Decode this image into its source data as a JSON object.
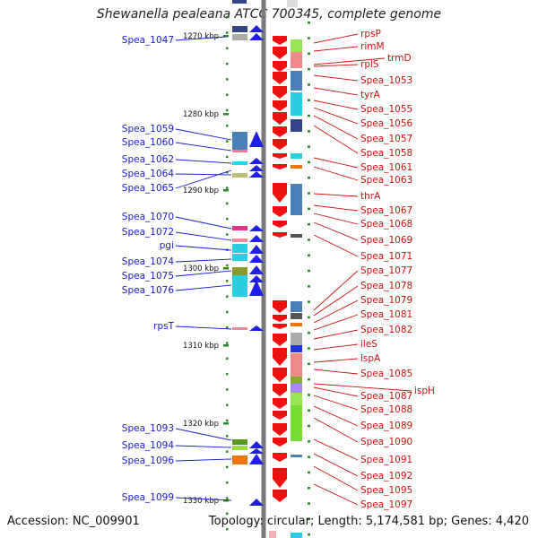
{
  "title": "Shewanella pealeana ATCC 700345, complete genome",
  "footer": {
    "accession": "Accession: NC_009901",
    "info": "Topology: circular; Length: 5,174,581 bp; Genes: 4,420"
  },
  "ticks": [
    "1270 kbp",
    "1280 kbp",
    "1290 kbp",
    "1300 kbp",
    "1310 kbp",
    "1320 kbp",
    "1330 kbp"
  ],
  "left_labels": [
    "Spea_1047",
    "Spea_1059",
    "Spea_1060",
    "Spea_1062",
    "Spea_1064",
    "Spea_1065",
    "Spea_1070",
    "Spea_1072",
    "pgi",
    "Spea_1074",
    "Spea_1075",
    "Spea_1076",
    "rpsT",
    "Spea_1093",
    "Spea_1094",
    "Spea_1096",
    "Spea_1099"
  ],
  "right_labels": [
    "rpsP",
    "rimM",
    "trmD",
    "rplS",
    "Spea_1053",
    "tyrA",
    "Spea_1055",
    "Spea_1056",
    "Spea_1057",
    "Spea_1058",
    "Spea_1061",
    "Spea_1063",
    "thrA",
    "Spea_1067",
    "Spea_1068",
    "Spea_1069",
    "Spea_1071",
    "Spea_1077",
    "Spea_1078",
    "Spea_1079",
    "Spea_1081",
    "Spea_1082",
    "ileS",
    "lspA",
    "Spea_1085",
    "ispH",
    "Spea_1087",
    "Spea_1088",
    "Spea_1089",
    "Spea_1090",
    "Spea_1091",
    "Spea_1092",
    "Spea_1095",
    "Spea_1097"
  ],
  "colors": {
    "left_label": "#1a1acc",
    "right_label": "#cc1111",
    "forward_arrow": "#1f1fe6",
    "reverse_arrow": "#ee1111",
    "backbone": "#7a7a7a",
    "tick": "#2a8a2a"
  }
}
